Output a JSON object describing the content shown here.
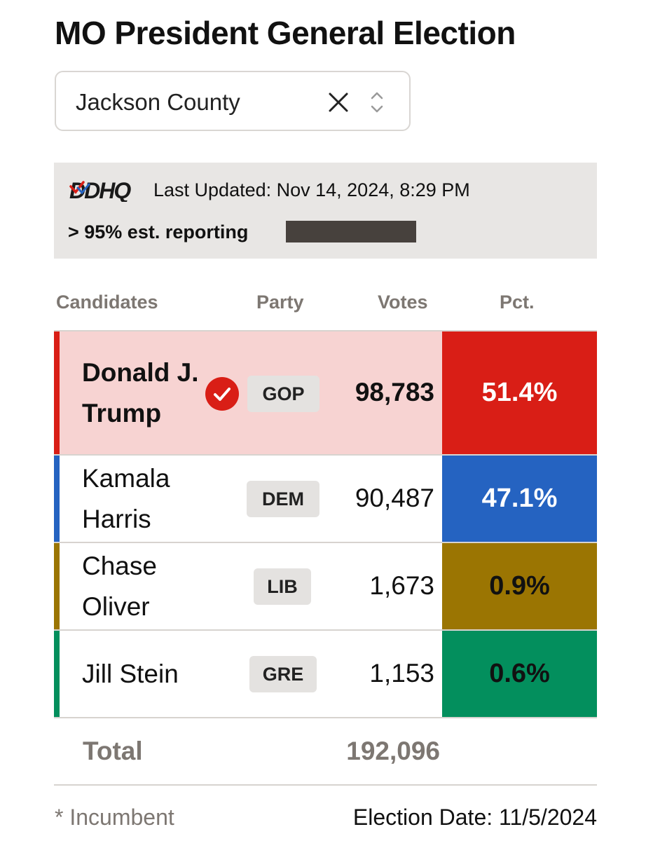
{
  "title": "MO President General Election",
  "county_select": {
    "value": "Jackson County"
  },
  "status": {
    "source_logo": "DDHQ",
    "last_updated": "Last Updated: Nov 14, 2024, 8:29 PM",
    "reporting_text": "> 95% est. reporting",
    "reporting_fraction": 0.95
  },
  "table": {
    "headers": {
      "candidates": "Candidates",
      "party": "Party",
      "votes": "Votes",
      "pct": "Pct."
    },
    "rows": [
      {
        "name": "Donald J. Trump",
        "winner": true,
        "party": "GOP",
        "votes": "98,783",
        "pct": "51.4%",
        "color": "#d91e16",
        "row_bg": "#f7d3d2",
        "pct_text_color": "#ffffff"
      },
      {
        "name": "Kamala Harris",
        "winner": false,
        "party": "DEM",
        "votes": "90,487",
        "pct": "47.1%",
        "color": "#2563c1",
        "row_bg": "#ffffff",
        "pct_text_color": "#ffffff"
      },
      {
        "name": "Chase Oliver",
        "winner": false,
        "party": "LIB",
        "votes": "1,673",
        "pct": "0.9%",
        "color": "#9b7502",
        "row_bg": "#ffffff",
        "pct_text_color": "#111111"
      },
      {
        "name": "Jill Stein",
        "winner": false,
        "party": "GRE",
        "votes": "1,153",
        "pct": "0.6%",
        "color": "#038f5d",
        "row_bg": "#ffffff",
        "pct_text_color": "#111111"
      }
    ],
    "total_label": "Total",
    "total_votes": "192,096"
  },
  "footer": {
    "incumbent_note": "* Incumbent",
    "election_date": "Election Date: 11/5/2024"
  }
}
